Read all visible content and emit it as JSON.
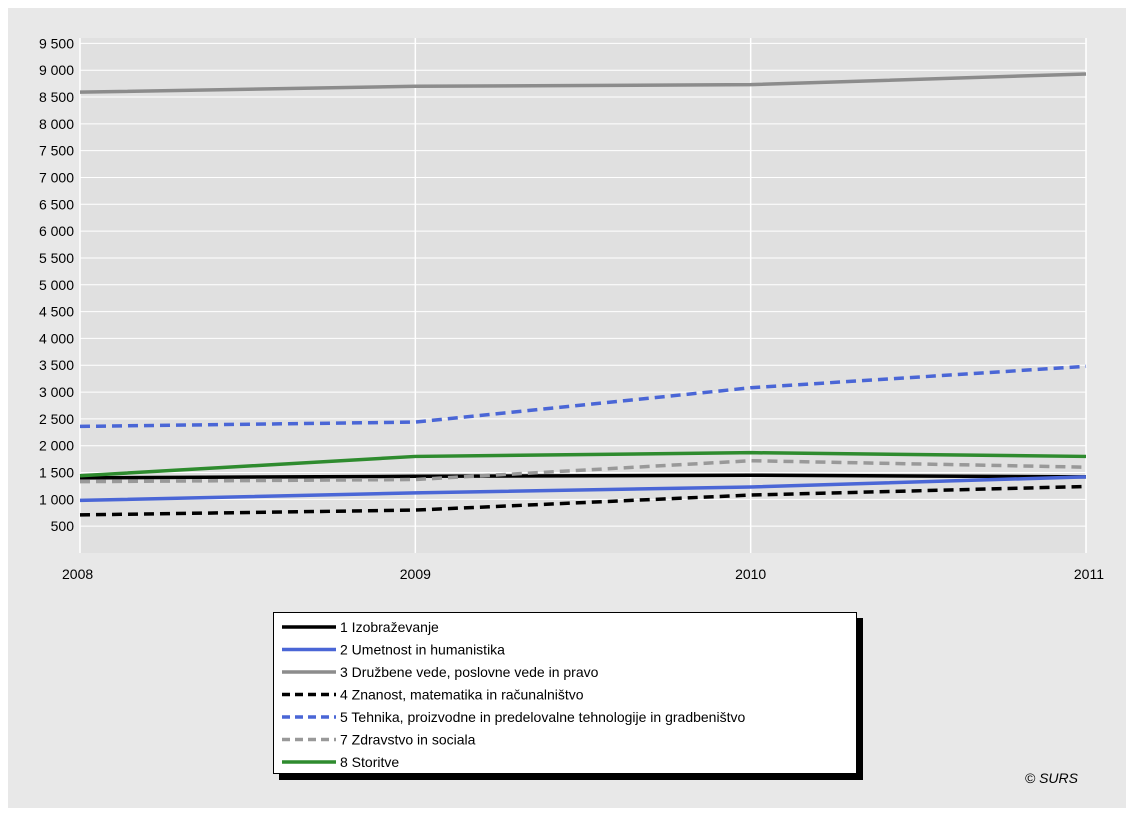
{
  "chart_data": {
    "type": "line",
    "title": "",
    "xlabel": "",
    "ylabel": "",
    "x": [
      2008,
      2009,
      2010,
      2011
    ],
    "x_ticks": [
      "2008",
      "2009",
      "2010",
      "2011"
    ],
    "xlim": [
      2008,
      2011
    ],
    "ylim": [
      0,
      9600
    ],
    "y_ticks": [
      "500",
      "1 000",
      "1 500",
      "2 000",
      "2 500",
      "3 000",
      "3 500",
      "4 000",
      "4 500",
      "5 000",
      "5 500",
      "6 000",
      "6 500",
      "7 000",
      "7 500",
      "8 000",
      "8 500",
      "9 000",
      "9 500"
    ],
    "y_tick_values": [
      500,
      1000,
      1500,
      2000,
      2500,
      3000,
      3500,
      4000,
      4500,
      5000,
      5500,
      6000,
      6500,
      7000,
      7500,
      8000,
      8500,
      9000,
      9500
    ],
    "grid": true,
    "legend_position": "bottom",
    "series": [
      {
        "name": "1 Izobraževanje",
        "color": "#000000",
        "dashed": false,
        "values": [
          1400,
          1430,
          1450,
          1420
        ]
      },
      {
        "name": "2 Umetnost in humanistika",
        "color": "#4a66d6",
        "dashed": false,
        "values": [
          980,
          1120,
          1230,
          1420
        ]
      },
      {
        "name": "3 Družbene vede, poslovne vede in pravo",
        "color": "#8c8c8c",
        "dashed": false,
        "values": [
          8590,
          8700,
          8730,
          8930
        ]
      },
      {
        "name": "4 Znanost, matematika in računalništvo",
        "color": "#000000",
        "dashed": true,
        "values": [
          710,
          800,
          1080,
          1240
        ]
      },
      {
        "name": "5 Tehnika, proizvodne in predelovalne tehnologije in gradbeništvo",
        "color": "#4a66d6",
        "dashed": true,
        "values": [
          2360,
          2440,
          3080,
          3480
        ]
      },
      {
        "name": "7 Zdravstvo in sociala",
        "color": "#999999",
        "dashed": true,
        "values": [
          1330,
          1370,
          1720,
          1600
        ]
      },
      {
        "name": "8 Storitve",
        "color": "#2e8b2e",
        "dashed": false,
        "values": [
          1440,
          1800,
          1870,
          1800
        ]
      }
    ]
  },
  "copyright": "© SURS"
}
